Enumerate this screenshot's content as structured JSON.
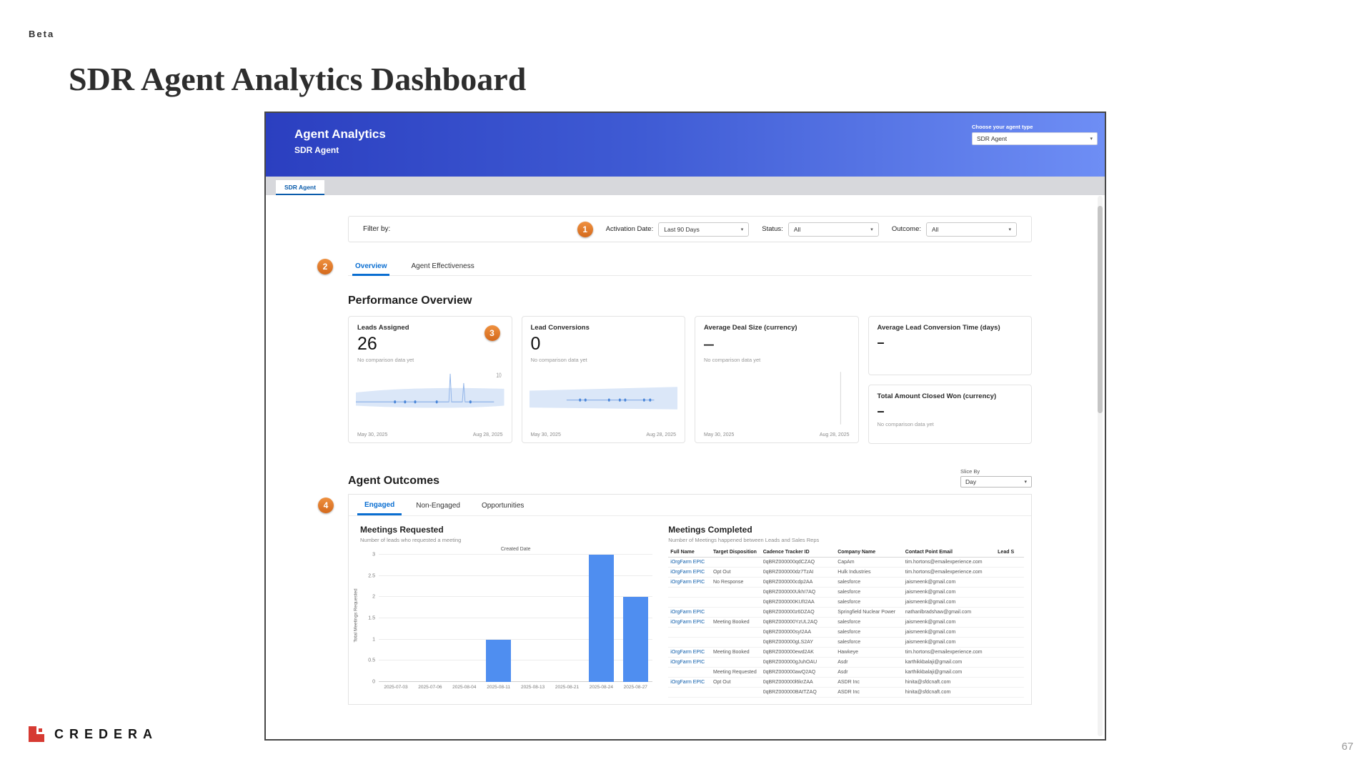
{
  "slide": {
    "beta_label": "Beta",
    "title": "SDR Agent Analytics Dashboard",
    "brand": "CREDERA",
    "page_number": "67"
  },
  "annotations": {
    "badge1": "1",
    "badge2": "2",
    "badge3": "3",
    "badge4": "4"
  },
  "colors": {
    "header_gradient_start": "#2b3fc0",
    "header_gradient_end": "#6e8ef5",
    "accent_blue": "#0a6ed1",
    "bar_blue": "#4f8ef0",
    "badge_orange": "#e0762a",
    "brand_red": "#d63a32"
  },
  "dashboard": {
    "header": {
      "title": "Agent Analytics",
      "subtitle": "SDR Agent",
      "agent_type_label": "Choose your agent type",
      "agent_type_value": "SDR Agent"
    },
    "nav": {
      "tab": "SDR Agent"
    },
    "filter_bar": {
      "label": "Filter by:",
      "activation_date": {
        "label": "Activation Date:",
        "value": "Last 90 Days"
      },
      "status": {
        "label": "Status:",
        "value": "All"
      },
      "outcome": {
        "label": "Outcome:",
        "value": "All"
      }
    },
    "main_tabs": {
      "overview": "Overview",
      "agent_effectiveness": "Agent Effectiveness"
    },
    "performance": {
      "heading": "Performance Overview",
      "cards": [
        {
          "title": "Leads Assigned",
          "value": "26",
          "note": "No comparison data yet",
          "date_start": "May 30, 2025",
          "date_end": "Aug 28, 2025",
          "ymax_label": "10"
        },
        {
          "title": "Lead Conversions",
          "value": "0",
          "note": "No comparison data yet",
          "date_start": "May 30, 2025",
          "date_end": "Aug 28, 2025"
        },
        {
          "title": "Average Deal Size (currency)",
          "value": "–",
          "note": "No comparison data yet",
          "date_start": "May 30, 2025",
          "date_end": "Aug 28, 2025"
        },
        {
          "title": "Average Lead Conversion Time (days)",
          "value": "–"
        },
        {
          "title": "Total Amount Closed Won (currency)",
          "value": "–",
          "note": "No comparison data yet"
        }
      ]
    },
    "outcomes": {
      "heading": "Agent Outcomes",
      "slice_by": {
        "label": "Slice By",
        "value": "Day"
      },
      "tabs": {
        "engaged": "Engaged",
        "non_engaged": "Non-Engaged",
        "opportunities": "Opportunities"
      },
      "meetings_requested": {
        "title": "Meetings Requested",
        "subtitle": "Number of leads who requested a meeting"
      },
      "meetings_completed": {
        "title": "Meetings Completed",
        "subtitle": "Number of Meetings happened between Leads and Sales Reps",
        "columns": [
          "Full Name",
          "Target Disposition",
          "Cadence Tracker ID",
          "Company Name",
          "Contact Point Email",
          "Lead S"
        ],
        "rows": [
          [
            "iOrgFarm EPIC",
            "",
            "0qBRZ000000qdCZAQ",
            "CapAm",
            "tim.hortons@emailexperience.com",
            ""
          ],
          [
            "iOrgFarm EPIC",
            "Opt Out",
            "0qBRZ000000dz7TzAI",
            "Hulk Industries",
            "tim.hortons@emailexperience.com",
            ""
          ],
          [
            "iOrgFarm EPIC",
            "No Response",
            "0qBRZ000000cdp2AA",
            "salesforce",
            "jaismeenk@gmail.com",
            ""
          ],
          [
            "",
            "",
            "0qBRZ000000UkhI7AQ",
            "salesforce",
            "jaismeenk@gmail.com",
            ""
          ],
          [
            "",
            "",
            "0qBRZ000000KUfI2AA",
            "salesforce",
            "jaismeenk@gmail.com",
            ""
          ],
          [
            "iOrgFarm EPIC",
            "",
            "0qBRZ000000z6DZAQ",
            "Springfield Nuclear Power",
            "nathanlbradshaw@gmail.com",
            ""
          ],
          [
            "iOrgFarm EPIC",
            "Meeting Booked",
            "0qBRZ000000YzUL2AQ",
            "salesforce",
            "jaismeenk@gmail.com",
            ""
          ],
          [
            "",
            "",
            "0qBRZ000000syI2AA",
            "salesforce",
            "jaismeenk@gmail.com",
            ""
          ],
          [
            "",
            "",
            "0qBRZ000000gLS2AY",
            "salesforce",
            "jaismeenk@gmail.com",
            ""
          ],
          [
            "iOrgFarm EPIC",
            "Meeting Booked",
            "0qBRZ000000ewd2AK",
            "Hawkeye",
            "tim.hortons@emailexperience.com",
            ""
          ],
          [
            "iOrgFarm EPIC",
            "",
            "0qBRZ000000gJuhOAU",
            "Asdr",
            "karthikkbalaji@gmail.com",
            ""
          ],
          [
            "",
            "Meeting Requested",
            "0qBRZ000000awQ2AQ",
            "Asdr",
            "karthikkbalaji@gmail.com",
            ""
          ],
          [
            "iOrgFarm EPIC",
            "Opt Out",
            "0qBRZ000000l6krZAA",
            "ASDR Inc",
            "hinita@sfdcnaft.com",
            ""
          ],
          [
            "",
            "",
            "0qBRZ000000BAtTZAQ",
            "ASDR Inc",
            "hinita@sfdcnaft.com",
            ""
          ]
        ]
      }
    }
  },
  "chart_data": [
    {
      "type": "bar",
      "title": "Meetings Requested",
      "subtitle": "Number of leads who requested a meeting",
      "xlabel": "Created Date",
      "ylabel": "Total Meetings Requested",
      "categories": [
        "2025-07-03",
        "2025-07-06",
        "2025-08-04",
        "2025-08-11",
        "2025-08-13",
        "2025-08-21",
        "2025-08-24",
        "2025-08-27"
      ],
      "values": [
        0,
        0,
        0,
        1,
        0,
        0,
        3,
        2
      ],
      "ylim": [
        0,
        3
      ],
      "yticks": [
        0,
        0.5,
        1,
        1.5,
        2,
        2.5,
        3
      ],
      "bar_color": "#4f8ef0",
      "grid": true,
      "legend": "none"
    },
    {
      "type": "line",
      "title": "Leads Assigned trend",
      "x_range": [
        "May 30, 2025",
        "Aug 28, 2025"
      ],
      "description": "Flat line near low values with confidence band and a spike toward Aug 28",
      "ymax_tick": "10"
    },
    {
      "type": "line",
      "title": "Lead Conversions trend",
      "x_range": [
        "May 30, 2025",
        "Aug 28, 2025"
      ],
      "description": "Flat line at zero with point markers and confidence band"
    }
  ]
}
